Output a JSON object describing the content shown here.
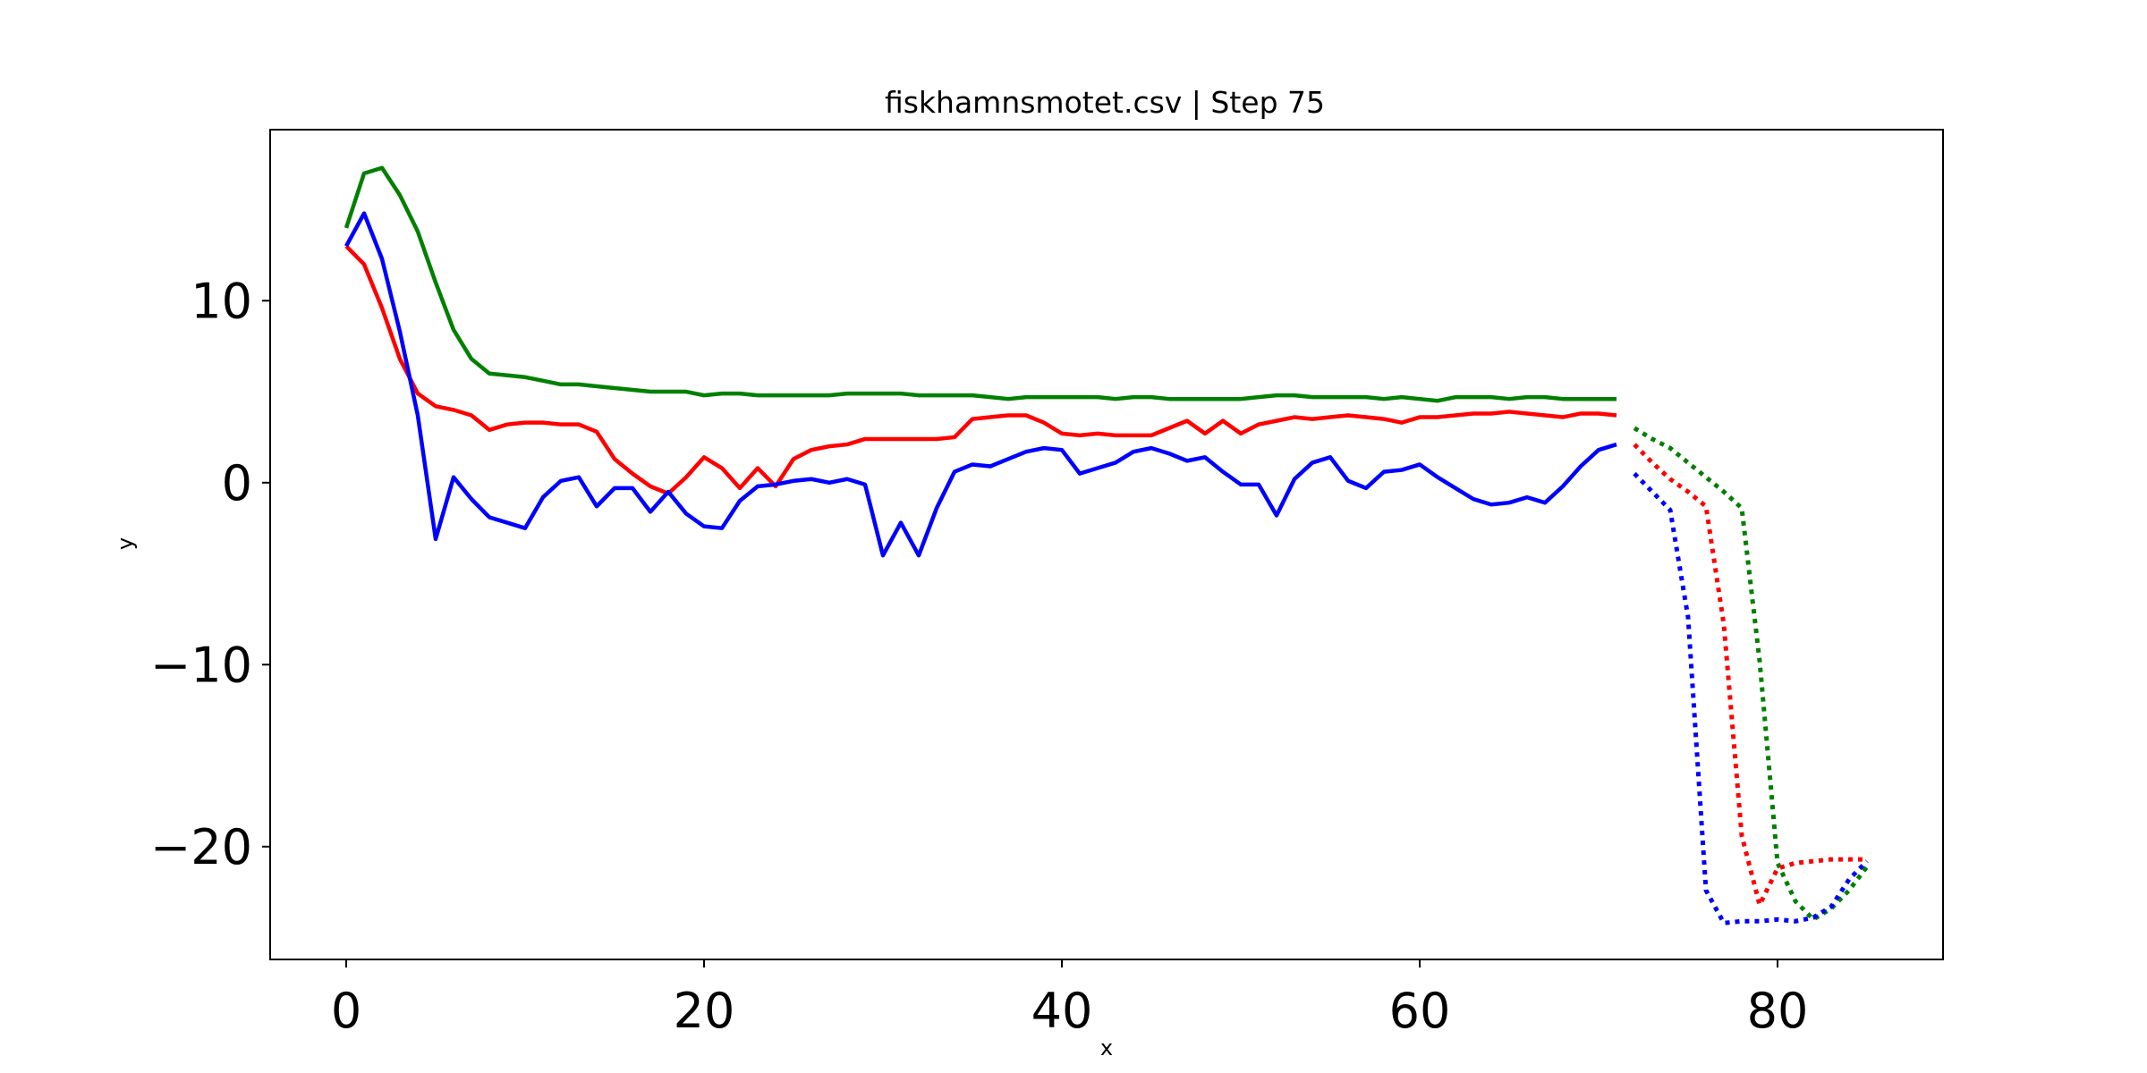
{
  "chart_data": {
    "type": "line",
    "title": "fiskhamnsmotet.csv | Step 75",
    "xlabel": "x",
    "ylabel": "y",
    "xlim": [
      -4.25,
      89.25
    ],
    "ylim": [
      -26.2,
      19.4
    ],
    "x_ticks": [
      0,
      20,
      40,
      60,
      80
    ],
    "y_ticks": [
      10,
      0,
      -10,
      -20
    ],
    "x_tick_labels": [
      "0",
      "20",
      "40",
      "60",
      "80"
    ],
    "y_tick_labels": [
      "10",
      "0",
      "−10",
      "−20"
    ],
    "grid": false,
    "legend": null,
    "series": [
      {
        "color": "#008000",
        "style": "solid",
        "x_start": 0,
        "values": [
          14.0,
          17.0,
          17.3,
          15.8,
          13.8,
          11.0,
          8.4,
          6.8,
          6.0,
          5.9,
          5.8,
          5.6,
          5.4,
          5.4,
          5.3,
          5.2,
          5.1,
          5.0,
          5.0,
          5.0,
          4.8,
          4.9,
          4.9,
          4.8,
          4.8,
          4.8,
          4.8,
          4.8,
          4.9,
          4.9,
          4.9,
          4.9,
          4.8,
          4.8,
          4.8,
          4.8,
          4.7,
          4.6,
          4.7,
          4.7,
          4.7,
          4.7,
          4.7,
          4.6,
          4.7,
          4.7,
          4.6,
          4.6,
          4.6,
          4.6,
          4.6,
          4.7,
          4.8,
          4.8,
          4.7,
          4.7,
          4.7,
          4.7,
          4.6,
          4.7,
          4.6,
          4.5,
          4.7,
          4.7,
          4.7,
          4.6,
          4.7,
          4.7,
          4.6,
          4.6,
          4.6,
          4.6
        ]
      },
      {
        "color": "#ff0000",
        "style": "solid",
        "x_start": 0,
        "values": [
          13.0,
          12.0,
          9.6,
          6.8,
          4.9,
          4.2,
          4.0,
          3.7,
          2.9,
          3.2,
          3.3,
          3.3,
          3.2,
          3.2,
          2.8,
          1.3,
          0.5,
          -0.2,
          -0.6,
          0.3,
          1.4,
          0.8,
          -0.3,
          0.8,
          -0.2,
          1.3,
          1.8,
          2.0,
          2.1,
          2.4,
          2.4,
          2.4,
          2.4,
          2.4,
          2.5,
          3.5,
          3.6,
          3.7,
          3.7,
          3.3,
          2.7,
          2.6,
          2.7,
          2.6,
          2.6,
          2.6,
          3.0,
          3.4,
          2.7,
          3.4,
          2.7,
          3.2,
          3.4,
          3.6,
          3.5,
          3.6,
          3.7,
          3.6,
          3.5,
          3.3,
          3.6,
          3.6,
          3.7,
          3.8,
          3.8,
          3.9,
          3.8,
          3.7,
          3.6,
          3.8,
          3.8,
          3.7
        ]
      },
      {
        "color": "#0000ff",
        "style": "solid",
        "x_start": 0,
        "values": [
          13.0,
          14.8,
          12.3,
          8.3,
          3.7,
          -3.1,
          0.3,
          -0.9,
          -1.9,
          -2.2,
          -2.5,
          -0.8,
          0.1,
          0.3,
          -1.3,
          -0.3,
          -0.3,
          -1.6,
          -0.5,
          -1.7,
          -2.4,
          -2.5,
          -1.0,
          -0.2,
          -0.1,
          0.1,
          0.2,
          0.0,
          0.2,
          -0.1,
          -4.0,
          -2.2,
          -4.0,
          -1.4,
          0.6,
          1.0,
          0.9,
          1.3,
          1.7,
          1.9,
          1.8,
          0.5,
          0.8,
          1.1,
          1.7,
          1.9,
          1.6,
          1.2,
          1.4,
          0.6,
          -0.1,
          -0.1,
          -1.8,
          0.2,
          1.1,
          1.4,
          0.1,
          -0.3,
          0.6,
          0.7,
          1.0,
          0.3,
          -0.3,
          -0.9,
          -1.2,
          -1.1,
          -0.8,
          -1.1,
          -0.2,
          0.9,
          1.8,
          2.1
        ]
      },
      {
        "color": "#008000",
        "style": "dotted",
        "x_start": 72,
        "values": [
          3.0,
          2.4,
          1.9,
          1.1,
          0.3,
          -0.5,
          -1.4,
          -9.8,
          -20.9,
          -23.0,
          -24.0,
          -23.4,
          -22.4,
          -21.1
        ]
      },
      {
        "color": "#ff0000",
        "style": "dotted",
        "x_start": 72,
        "values": [
          2.1,
          1.1,
          0.2,
          -0.5,
          -1.3,
          -7.8,
          -19.4,
          -23.2,
          -21.2,
          -20.9,
          -20.8,
          -20.7,
          -20.7,
          -20.7
        ]
      },
      {
        "color": "#0000ff",
        "style": "dotted",
        "x_start": 72,
        "values": [
          0.5,
          -0.5,
          -1.5,
          -7.4,
          -22.4,
          -24.2,
          -24.1,
          -24.1,
          -24.0,
          -24.1,
          -23.9,
          -23.3,
          -21.8,
          -20.8
        ]
      }
    ]
  }
}
